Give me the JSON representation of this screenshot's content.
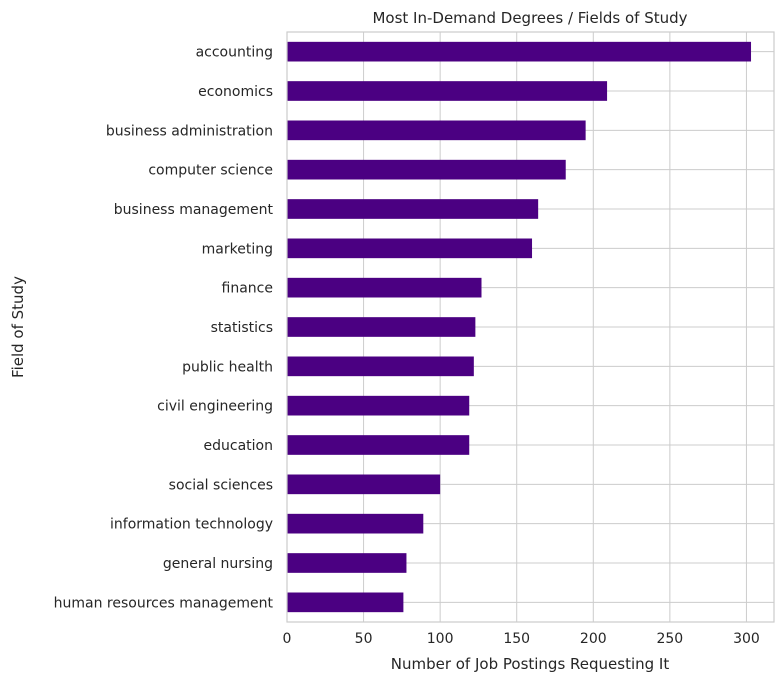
{
  "chart_data": {
    "type": "bar",
    "orientation": "horizontal",
    "title": "Most In-Demand Degrees / Fields of Study",
    "xlabel": "Number of Job Postings Requesting It",
    "ylabel": "Field of Study",
    "xlim": [
      0,
      318
    ],
    "xticks": [
      0,
      50,
      100,
      150,
      200,
      250,
      300
    ],
    "grid": true,
    "bar_color": "#4b0082",
    "categories": [
      "accounting",
      "economics",
      "business administration",
      "computer science",
      "business management",
      "marketing",
      "finance",
      "statistics",
      "public health",
      "civil engineering",
      "education",
      "social sciences",
      "information technology",
      "general nursing",
      "human resources management"
    ],
    "values": [
      303,
      209,
      195,
      182,
      164,
      160,
      127,
      123,
      122,
      119,
      119,
      100,
      89,
      78,
      76
    ]
  }
}
